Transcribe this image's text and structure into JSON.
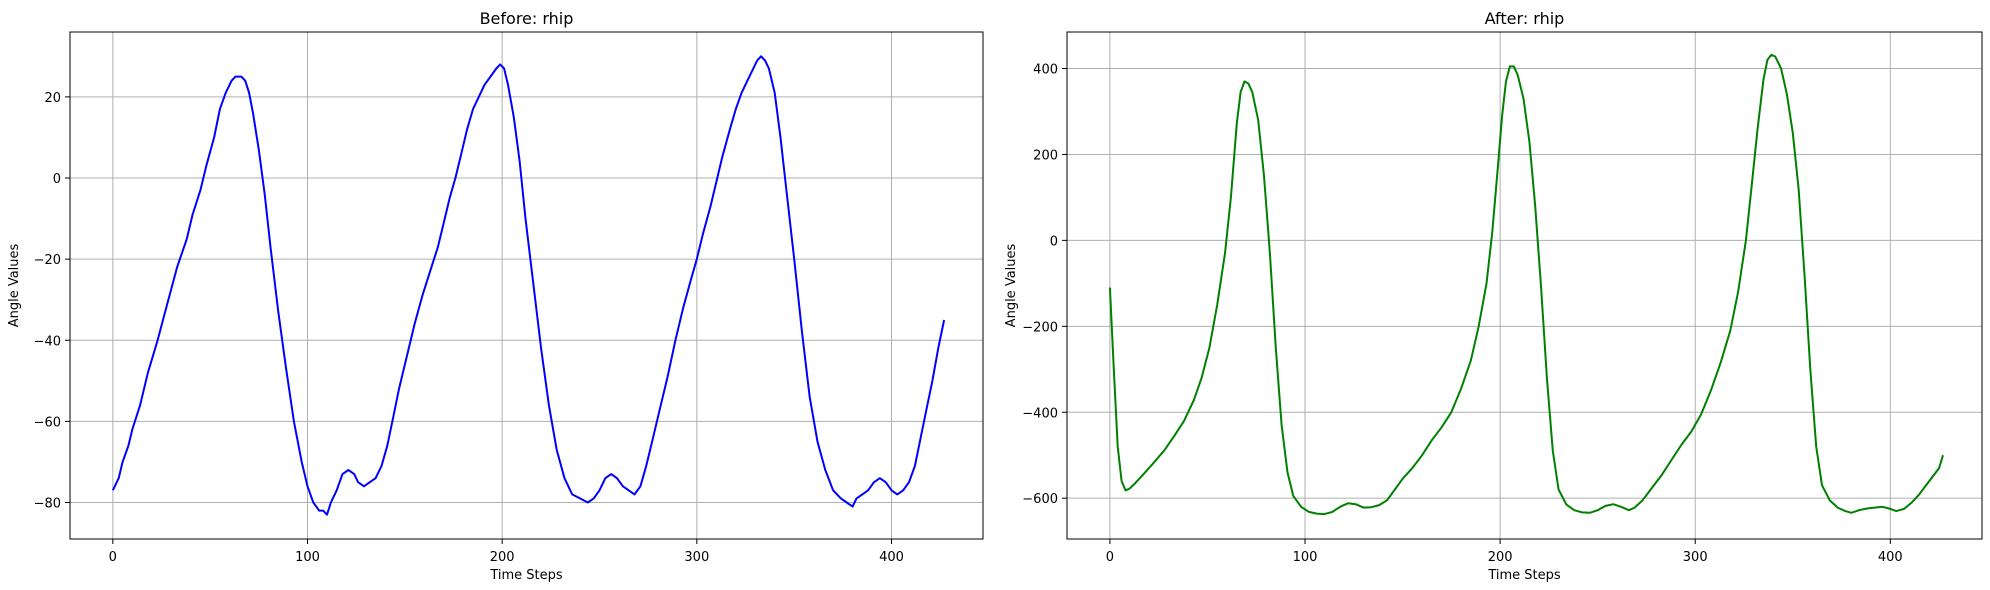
{
  "chart_data": [
    {
      "type": "line",
      "title": "Before: rhip",
      "xlabel": "Time Steps",
      "ylabel": "Angle Values",
      "xlim": [
        -22,
        447
      ],
      "ylim": [
        -89,
        36
      ],
      "xticks": [
        0,
        100,
        200,
        300,
        400
      ],
      "yticks": [
        -80,
        -60,
        -40,
        -20,
        0,
        20
      ],
      "grid": true,
      "color": "#0000ff",
      "series": [
        {
          "points": [
            [
              0,
              -77
            ],
            [
              3,
              -74
            ],
            [
              5,
              -70
            ],
            [
              8,
              -66
            ],
            [
              10,
              -62
            ],
            [
              14,
              -56
            ],
            [
              18,
              -48
            ],
            [
              23,
              -40
            ],
            [
              28,
              -31
            ],
            [
              33,
              -22
            ],
            [
              38,
              -15
            ],
            [
              41,
              -9
            ],
            [
              45,
              -3
            ],
            [
              48,
              3
            ],
            [
              52,
              10
            ],
            [
              55,
              17
            ],
            [
              58,
              21
            ],
            [
              61,
              24
            ],
            [
              63,
              25
            ],
            [
              66,
              25
            ],
            [
              68,
              24
            ],
            [
              70,
              21
            ],
            [
              72,
              16
            ],
            [
              75,
              7
            ],
            [
              78,
              -4
            ],
            [
              81,
              -17
            ],
            [
              85,
              -33
            ],
            [
              89,
              -47
            ],
            [
              93,
              -60
            ],
            [
              97,
              -70
            ],
            [
              100,
              -76
            ],
            [
              103,
              -80
            ],
            [
              106,
              -82
            ],
            [
              108,
              -82
            ],
            [
              110,
              -83
            ],
            [
              112,
              -80
            ],
            [
              115,
              -77
            ],
            [
              118,
              -73
            ],
            [
              121,
              -72
            ],
            [
              124,
              -73
            ],
            [
              126,
              -75
            ],
            [
              129,
              -76
            ],
            [
              132,
              -75
            ],
            [
              135,
              -74
            ],
            [
              138,
              -71
            ],
            [
              141,
              -66
            ],
            [
              144,
              -59
            ],
            [
              147,
              -52
            ],
            [
              151,
              -44
            ],
            [
              155,
              -36
            ],
            [
              159,
              -29
            ],
            [
              163,
              -23
            ],
            [
              167,
              -17
            ],
            [
              170,
              -11
            ],
            [
              173,
              -5
            ],
            [
              176,
              0
            ],
            [
              179,
              6
            ],
            [
              182,
              12
            ],
            [
              185,
              17
            ],
            [
              188,
              20
            ],
            [
              191,
              23
            ],
            [
              194,
              25
            ],
            [
              197,
              27
            ],
            [
              199,
              28
            ],
            [
              201,
              27
            ],
            [
              203,
              23
            ],
            [
              206,
              15
            ],
            [
              209,
              4
            ],
            [
              212,
              -10
            ],
            [
              216,
              -26
            ],
            [
              220,
              -42
            ],
            [
              224,
              -56
            ],
            [
              228,
              -67
            ],
            [
              232,
              -74
            ],
            [
              236,
              -78
            ],
            [
              240,
              -79
            ],
            [
              244,
              -80
            ],
            [
              247,
              -79
            ],
            [
              250,
              -77
            ],
            [
              253,
              -74
            ],
            [
              256,
              -73
            ],
            [
              259,
              -74
            ],
            [
              262,
              -76
            ],
            [
              265,
              -77
            ],
            [
              268,
              -78
            ],
            [
              271,
              -76
            ],
            [
              274,
              -71
            ],
            [
              277,
              -65
            ],
            [
              281,
              -57
            ],
            [
              285,
              -49
            ],
            [
              289,
              -40
            ],
            [
              293,
              -32
            ],
            [
              297,
              -25
            ],
            [
              300,
              -20
            ],
            [
              303,
              -14
            ],
            [
              307,
              -7
            ],
            [
              310,
              -1
            ],
            [
              313,
              5
            ],
            [
              317,
              12
            ],
            [
              320,
              17
            ],
            [
              323,
              21
            ],
            [
              326,
              24
            ],
            [
              329,
              27
            ],
            [
              331,
              29
            ],
            [
              333,
              30
            ],
            [
              335,
              29
            ],
            [
              337,
              27
            ],
            [
              340,
              21
            ],
            [
              343,
              10
            ],
            [
              346,
              -3
            ],
            [
              350,
              -20
            ],
            [
              354,
              -38
            ],
            [
              358,
              -54
            ],
            [
              362,
              -65
            ],
            [
              366,
              -72
            ],
            [
              370,
              -77
            ],
            [
              374,
              -79
            ],
            [
              377,
              -80
            ],
            [
              380,
              -81
            ],
            [
              382,
              -79
            ],
            [
              385,
              -78
            ],
            [
              388,
              -77
            ],
            [
              391,
              -75
            ],
            [
              394,
              -74
            ],
            [
              397,
              -75
            ],
            [
              400,
              -77
            ],
            [
              403,
              -78
            ],
            [
              406,
              -77
            ],
            [
              409,
              -75
            ],
            [
              412,
              -71
            ],
            [
              415,
              -64
            ],
            [
              418,
              -57
            ],
            [
              421,
              -50
            ],
            [
              424,
              -42
            ],
            [
              427,
              -35
            ]
          ]
        }
      ]
    },
    {
      "type": "line",
      "title": "After: rhip",
      "xlabel": "Time Steps",
      "ylabel": "Angle Values",
      "xlim": [
        -22,
        447
      ],
      "ylim": [
        -695,
        485
      ],
      "xticks": [
        0,
        100,
        200,
        300,
        400
      ],
      "yticks": [
        -600,
        -400,
        -200,
        0,
        200,
        400
      ],
      "grid": true,
      "color": "#008000",
      "series": [
        {
          "points": [
            [
              0,
              -110
            ],
            [
              2,
              -300
            ],
            [
              4,
              -480
            ],
            [
              6,
              -560
            ],
            [
              8,
              -582
            ],
            [
              10,
              -578
            ],
            [
              13,
              -565
            ],
            [
              17,
              -545
            ],
            [
              22,
              -520
            ],
            [
              28,
              -488
            ],
            [
              33,
              -455
            ],
            [
              38,
              -420
            ],
            [
              43,
              -372
            ],
            [
              47,
              -320
            ],
            [
              51,
              -250
            ],
            [
              55,
              -150
            ],
            [
              59,
              -30
            ],
            [
              62,
              100
            ],
            [
              65,
              270
            ],
            [
              67,
              345
            ],
            [
              69,
              370
            ],
            [
              71,
              365
            ],
            [
              73,
              345
            ],
            [
              76,
              280
            ],
            [
              79,
              150
            ],
            [
              82,
              -30
            ],
            [
              85,
              -250
            ],
            [
              88,
              -430
            ],
            [
              91,
              -540
            ],
            [
              94,
              -595
            ],
            [
              98,
              -620
            ],
            [
              102,
              -632
            ],
            [
              106,
              -636
            ],
            [
              110,
              -637
            ],
            [
              114,
              -632
            ],
            [
              118,
              -620
            ],
            [
              122,
              -612
            ],
            [
              126,
              -614
            ],
            [
              130,
              -622
            ],
            [
              134,
              -621
            ],
            [
              138,
              -616
            ],
            [
              142,
              -605
            ],
            [
              146,
              -580
            ],
            [
              150,
              -555
            ],
            [
              155,
              -530
            ],
            [
              160,
              -500
            ],
            [
              165,
              -465
            ],
            [
              170,
              -435
            ],
            [
              175,
              -400
            ],
            [
              180,
              -345
            ],
            [
              185,
              -280
            ],
            [
              189,
              -200
            ],
            [
              193,
              -100
            ],
            [
              196,
              20
            ],
            [
              199,
              180
            ],
            [
              201,
              290
            ],
            [
              203,
              370
            ],
            [
              205,
              405
            ],
            [
              207,
              405
            ],
            [
              209,
              385
            ],
            [
              212,
              330
            ],
            [
              215,
              230
            ],
            [
              218,
              80
            ],
            [
              221,
              -110
            ],
            [
              224,
              -320
            ],
            [
              227,
              -490
            ],
            [
              230,
              -580
            ],
            [
              234,
              -615
            ],
            [
              238,
              -628
            ],
            [
              242,
              -633
            ],
            [
              246,
              -634
            ],
            [
              250,
              -628
            ],
            [
              254,
              -618
            ],
            [
              258,
              -614
            ],
            [
              262,
              -620
            ],
            [
              266,
              -628
            ],
            [
              269,
              -622
            ],
            [
              273,
              -605
            ],
            [
              278,
              -575
            ],
            [
              283,
              -545
            ],
            [
              288,
              -510
            ],
            [
              293,
              -475
            ],
            [
              298,
              -445
            ],
            [
              303,
              -405
            ],
            [
              308,
              -350
            ],
            [
              313,
              -285
            ],
            [
              318,
              -210
            ],
            [
              322,
              -120
            ],
            [
              326,
              0
            ],
            [
              329,
              130
            ],
            [
              332,
              260
            ],
            [
              335,
              375
            ],
            [
              337,
              420
            ],
            [
              339,
              432
            ],
            [
              341,
              428
            ],
            [
              344,
              400
            ],
            [
              347,
              340
            ],
            [
              350,
              250
            ],
            [
              353,
              120
            ],
            [
              356,
              -80
            ],
            [
              359,
              -300
            ],
            [
              362,
              -480
            ],
            [
              365,
              -570
            ],
            [
              369,
              -605
            ],
            [
              373,
              -622
            ],
            [
              377,
              -630
            ],
            [
              380,
              -634
            ],
            [
              384,
              -628
            ],
            [
              388,
              -624
            ],
            [
              392,
              -622
            ],
            [
              396,
              -620
            ],
            [
              400,
              -625
            ],
            [
              403,
              -630
            ],
            [
              407,
              -625
            ],
            [
              411,
              -610
            ],
            [
              415,
              -590
            ],
            [
              420,
              -560
            ],
            [
              425,
              -530
            ],
            [
              427,
              -500
            ]
          ]
        }
      ]
    }
  ]
}
